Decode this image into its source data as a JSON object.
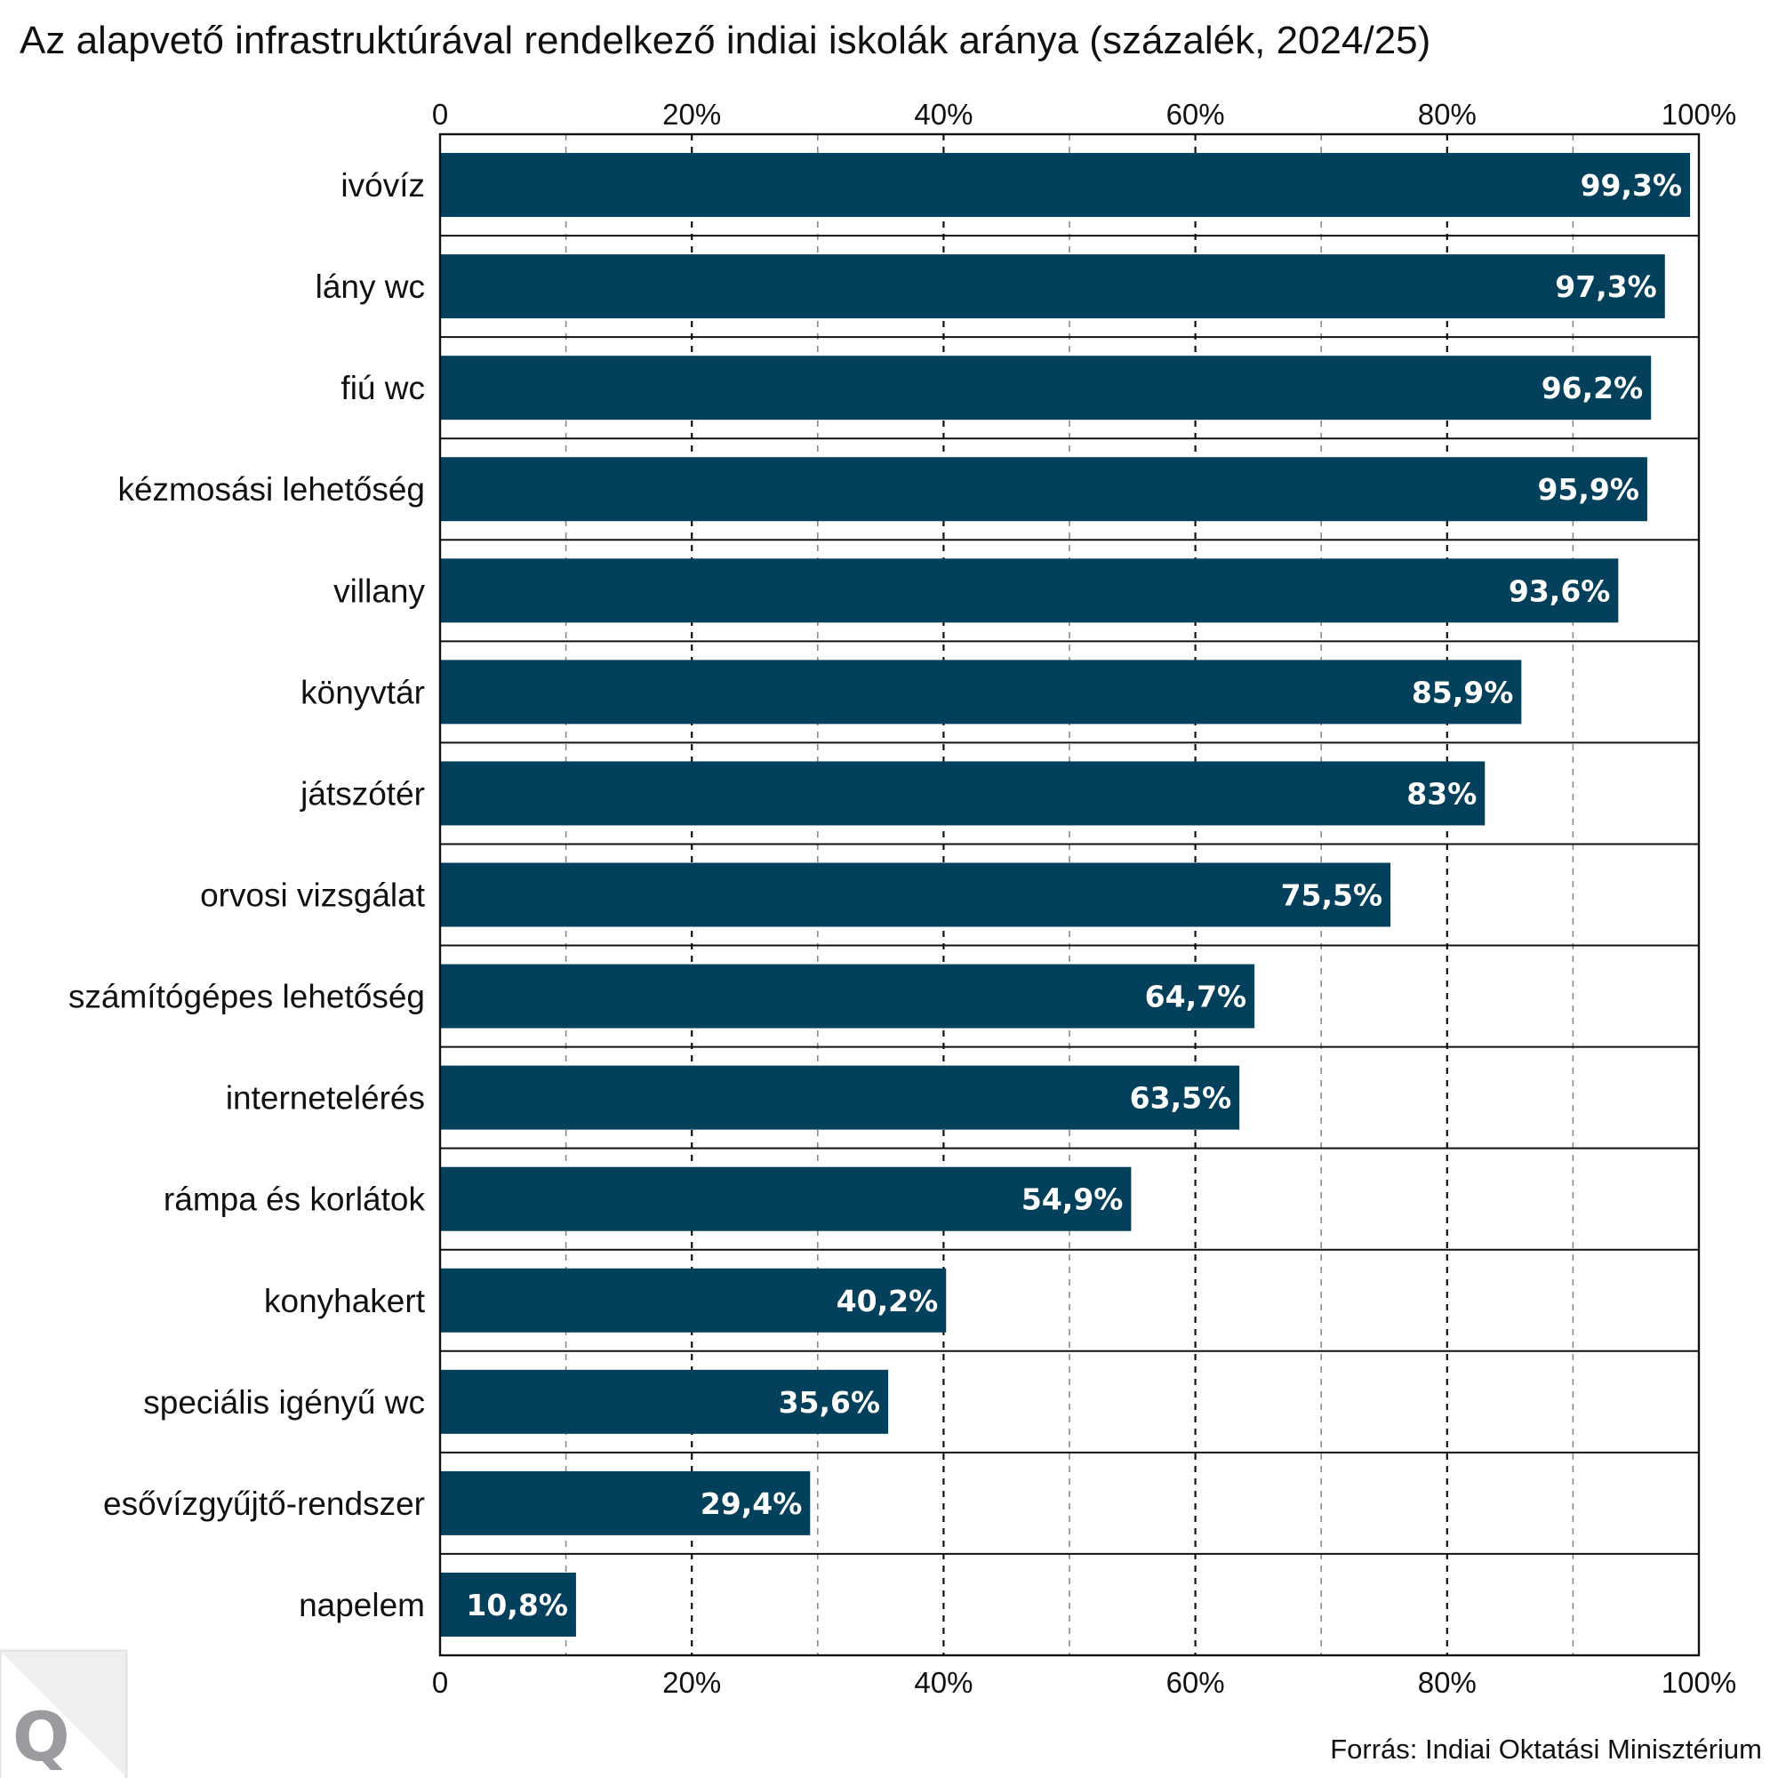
{
  "chart_data": {
    "type": "bar",
    "orientation": "horizontal",
    "title": "Az alapvető infrastruktúrával rendelkező indiai iskolák aránya (százalék, 2024/25)",
    "xlabel": "",
    "ylabel": "",
    "xlim": [
      0,
      100
    ],
    "x_ticks": [
      0,
      20,
      40,
      60,
      80,
      100
    ],
    "x_tick_labels": [
      "0",
      "20%",
      "40%",
      "60%",
      "80%",
      "100%"
    ],
    "x_axis_position": "top-and-bottom",
    "minor_gridlines": [
      10,
      30,
      50,
      70,
      90
    ],
    "grid": true,
    "categories": [
      "ivóvíz",
      "lány wc",
      "fiú wc",
      "kézmosási lehetőség",
      "villany",
      "könyvtár",
      "játszótér",
      "orvosi vizsgálat",
      "számítógépes lehetőség",
      "internetelérés",
      "rámpa és korlátok",
      "konyhakert",
      "speciális igényű wc",
      "esővízgyűjtő-rendszer",
      "napelem"
    ],
    "values": [
      99.3,
      97.3,
      96.2,
      95.9,
      93.6,
      85.9,
      83,
      75.5,
      64.7,
      63.5,
      54.9,
      40.2,
      35.6,
      29.4,
      10.8
    ],
    "value_labels": [
      "99,3%",
      "97,3%",
      "96,2%",
      "95,9%",
      "93,6%",
      "85,9%",
      "83%",
      "75,5%",
      "64,7%",
      "63,5%",
      "54,9%",
      "40,2%",
      "35,6%",
      "29,4%",
      "10,8%"
    ],
    "bar_color": "#03405c",
    "source": "Forrás: Indiai Oktatási Minisztérium"
  },
  "branding": {
    "logo_letter": "Q"
  }
}
